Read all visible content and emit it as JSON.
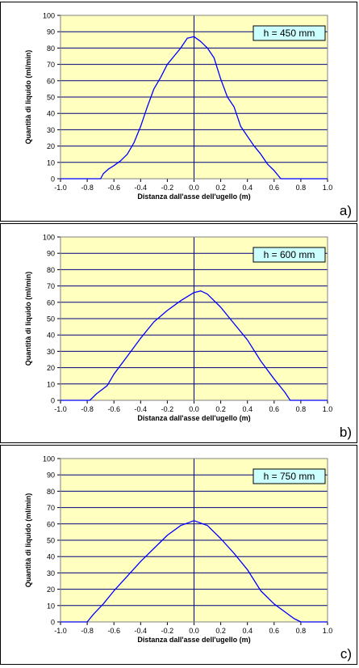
{
  "chart_data": [
    {
      "type": "line",
      "panel_label": "a)",
      "annotation": "h = 450 mm",
      "xlabel": "Distanza dall'asse dell'ugello (m)",
      "ylabel": "Quantità di liquido (ml/min)",
      "xlim": [
        -1.0,
        1.0
      ],
      "ylim": [
        0,
        100
      ],
      "xticks": [
        "-1.0",
        "-0.8",
        "-0.6",
        "-0.4",
        "-0.2",
        "0.0",
        "0.2",
        "0.4",
        "0.6",
        "0.8",
        "1.0"
      ],
      "yticks": [
        "0",
        "10",
        "20",
        "30",
        "40",
        "50",
        "60",
        "70",
        "80",
        "90",
        "100"
      ],
      "grid": true,
      "plot_background": "#ffffc0",
      "line_color": "#0000ff",
      "x": [
        -1.0,
        -0.7,
        -0.68,
        -0.64,
        -0.6,
        -0.55,
        -0.5,
        -0.45,
        -0.4,
        -0.35,
        -0.3,
        -0.25,
        -0.2,
        -0.15,
        -0.1,
        -0.05,
        0.0,
        0.05,
        0.1,
        0.15,
        0.2,
        0.25,
        0.3,
        0.35,
        0.4,
        0.45,
        0.5,
        0.55,
        0.6,
        0.65,
        1.0
      ],
      "y": [
        0,
        0,
        3,
        6,
        8,
        11,
        15,
        22,
        32,
        44,
        55,
        62,
        70,
        75,
        80,
        86,
        87,
        84,
        80,
        74,
        61,
        50,
        44,
        32,
        26,
        20,
        15,
        9,
        5,
        0,
        0
      ]
    },
    {
      "type": "line",
      "panel_label": "b)",
      "annotation": "h = 600 mm",
      "xlabel": "Distanza dall'asse dell'ugello (m)",
      "ylabel": "Quantità di liquido (ml/min)",
      "xlim": [
        -1.0,
        1.0
      ],
      "ylim": [
        0,
        100
      ],
      "xticks": [
        "-1.0",
        "-0.8",
        "-0.6",
        "-0.4",
        "-0.2",
        "0.0",
        "0.2",
        "0.4",
        "0.6",
        "0.8",
        "1.0"
      ],
      "yticks": [
        "0",
        "10",
        "20",
        "30",
        "40",
        "50",
        "60",
        "70",
        "80",
        "90",
        "100"
      ],
      "grid": true,
      "plot_background": "#ffffc0",
      "line_color": "#0000ff",
      "x": [
        -1.0,
        -0.78,
        -0.73,
        -0.65,
        -0.6,
        -0.5,
        -0.4,
        -0.3,
        -0.2,
        -0.1,
        0.0,
        0.05,
        0.1,
        0.2,
        0.3,
        0.4,
        0.5,
        0.6,
        0.68,
        0.72,
        1.0
      ],
      "y": [
        0,
        0,
        4,
        9,
        16,
        27,
        38,
        48,
        55,
        61,
        66,
        67,
        65,
        57,
        47,
        37,
        24,
        13,
        5,
        0,
        0
      ]
    },
    {
      "type": "line",
      "panel_label": "c)",
      "annotation": "h = 750 mm",
      "xlabel": "Distanza dall'asse dell'ugello (m)",
      "ylabel": "Quantità di liquido (ml/min)",
      "xlim": [
        -1.0,
        1.0
      ],
      "ylim": [
        0,
        100
      ],
      "xticks": [
        "-1.0",
        "-0.8",
        "-0.6",
        "-0.4",
        "-0.2",
        "0.0",
        "0.2",
        "0.4",
        "0.6",
        "0.8",
        "1.0"
      ],
      "yticks": [
        "0",
        "10",
        "20",
        "30",
        "40",
        "50",
        "60",
        "70",
        "80",
        "90",
        "100"
      ],
      "grid": true,
      "plot_background": "#ffffc0",
      "line_color": "#0000ff",
      "x": [
        -1.0,
        -0.8,
        -0.75,
        -0.68,
        -0.6,
        -0.5,
        -0.4,
        -0.3,
        -0.2,
        -0.1,
        0.0,
        0.1,
        0.2,
        0.3,
        0.4,
        0.5,
        0.6,
        0.7,
        0.75,
        0.8,
        1.0
      ],
      "y": [
        0,
        0,
        5,
        11,
        19,
        28,
        37,
        45,
        53,
        59,
        62,
        59,
        51,
        42,
        32,
        19,
        11,
        5,
        2,
        0,
        0
      ]
    }
  ]
}
